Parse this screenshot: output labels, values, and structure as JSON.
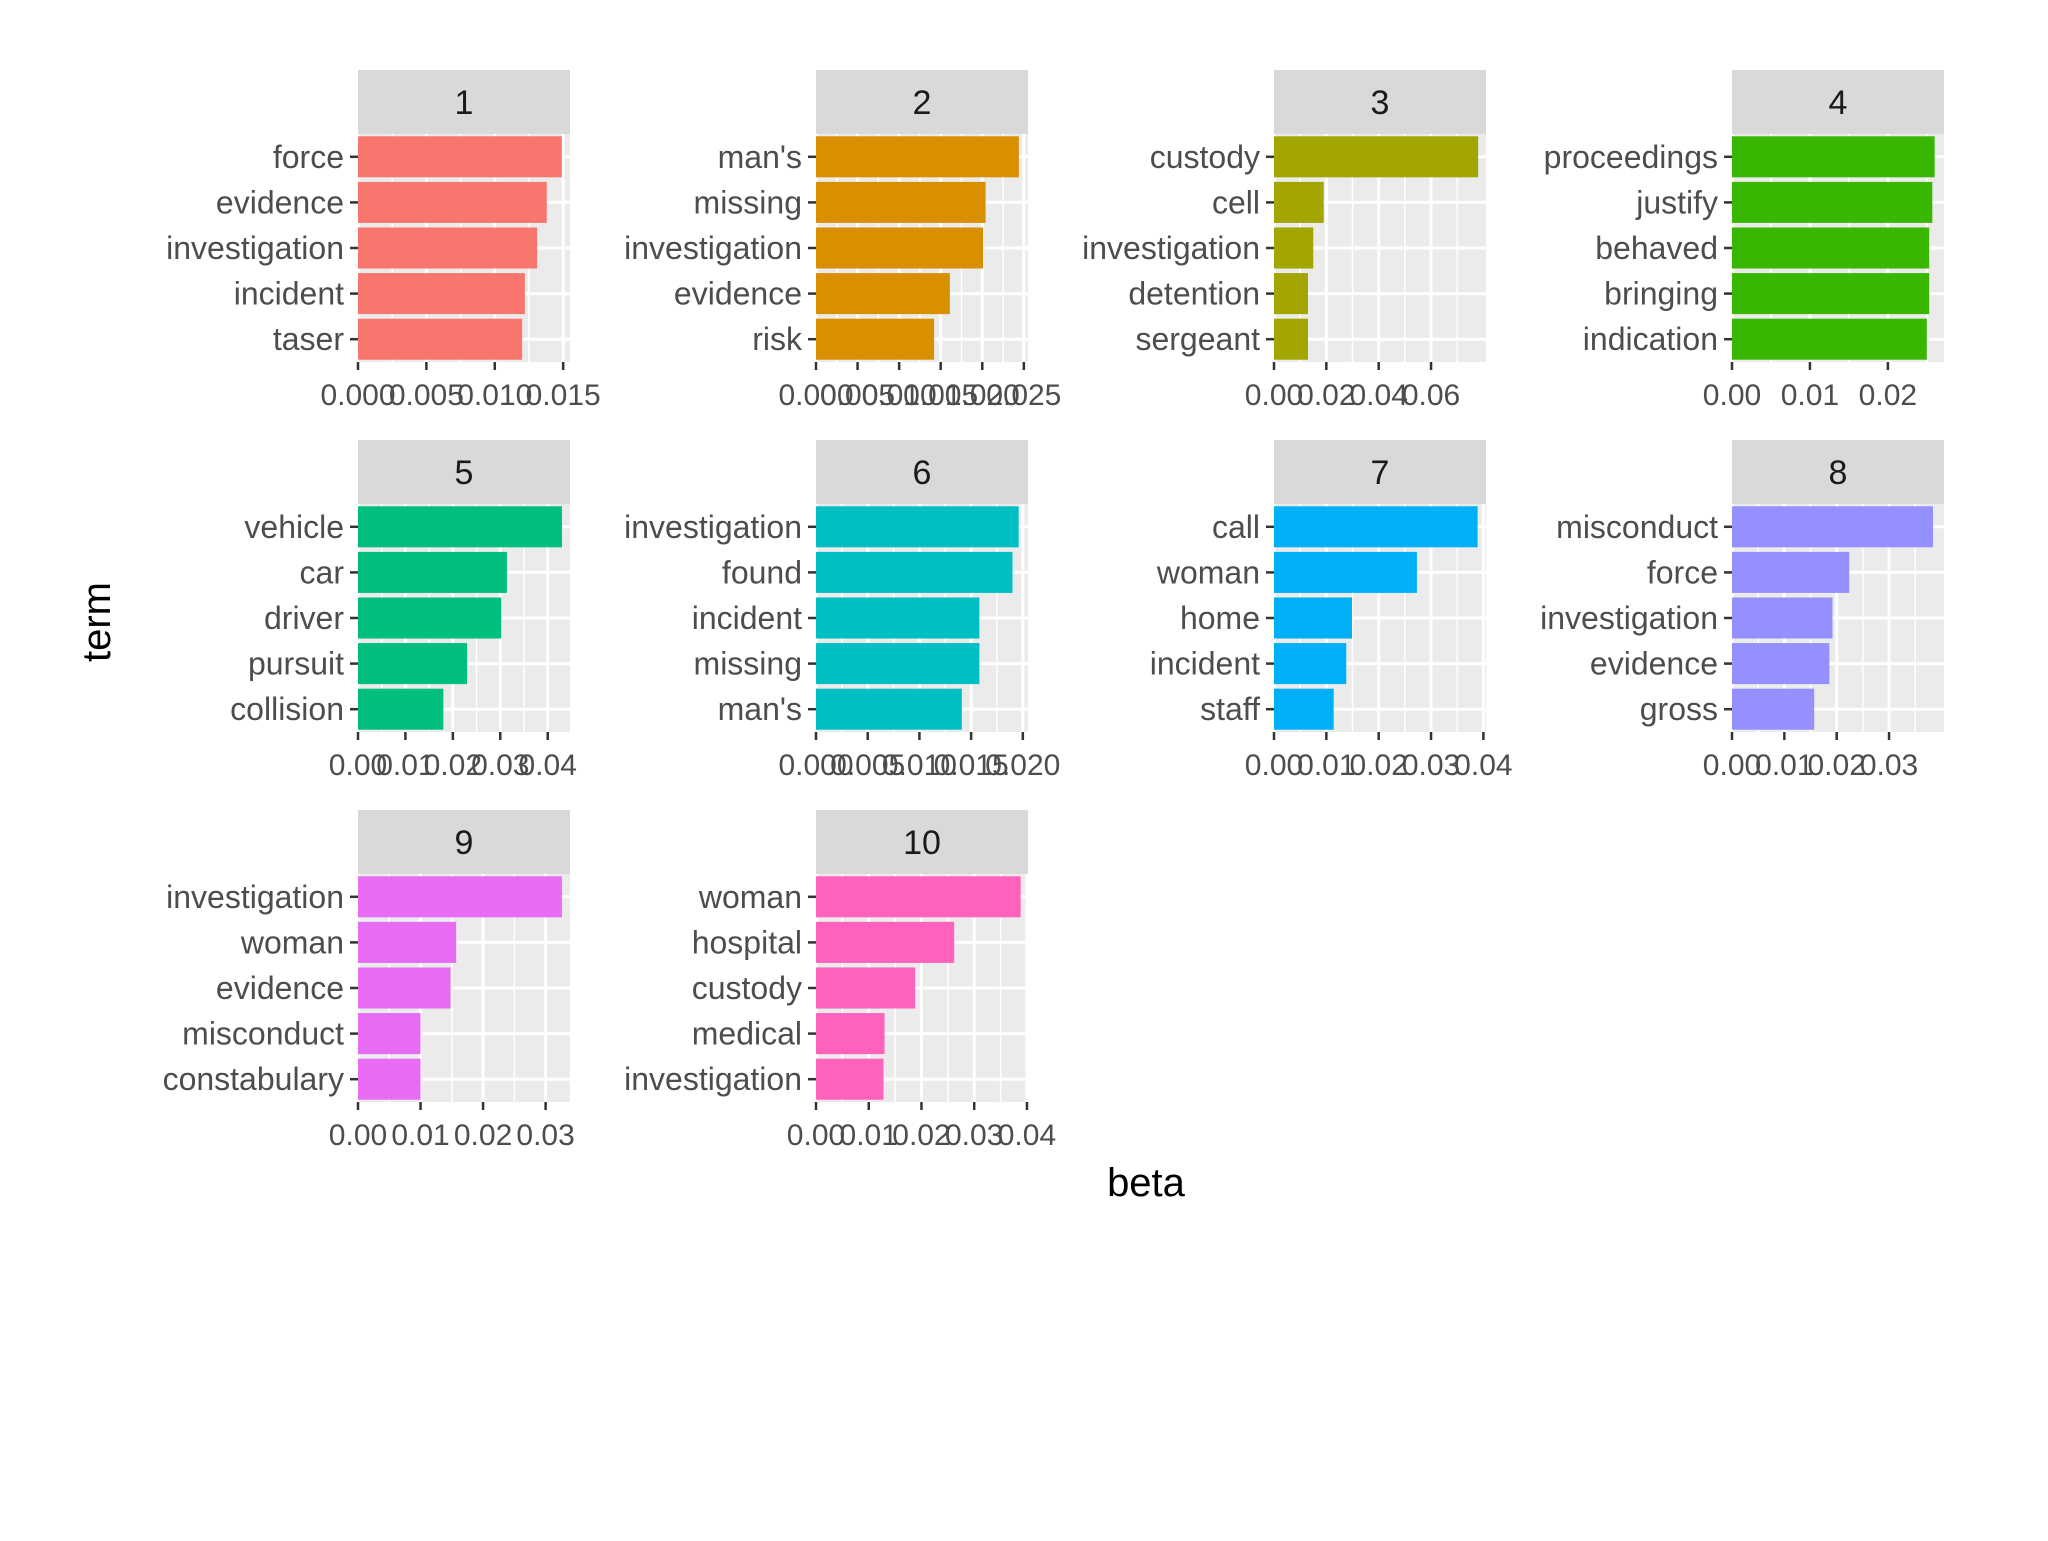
{
  "chart_data": {
    "type": "bar",
    "orientation": "horizontal",
    "facet_type": "wrap",
    "xlabel": "beta",
    "ylabel": "term",
    "panel_background": "#ebebeb",
    "strip_background": "#d9d9d9",
    "panels": [
      {
        "label": "1",
        "color": "#F8766D",
        "terms": [
          "force",
          "evidence",
          "investigation",
          "incident",
          "taser"
        ],
        "values": [
          0.0149,
          0.0138,
          0.0131,
          0.0122,
          0.012
        ],
        "xlim": [
          0,
          0.0155
        ],
        "ticks": [
          0,
          0.005,
          0.01,
          0.015
        ],
        "tick_labels": [
          "0.000",
          "0.005",
          "0.010",
          "0.015"
        ]
      },
      {
        "label": "2",
        "color": "#D89000",
        "terms": [
          "man's",
          "missing",
          "investigation",
          "evidence",
          "risk"
        ],
        "values": [
          0.0244,
          0.0204,
          0.0201,
          0.0161,
          0.0142
        ],
        "xlim": [
          0,
          0.0255
        ],
        "ticks": [
          0,
          0.005,
          0.01,
          0.015,
          0.02,
          0.025
        ],
        "tick_labels": [
          "0.000",
          "0.005",
          "0.010",
          "0.015",
          "0.020",
          "0.025"
        ]
      },
      {
        "label": "3",
        "color": "#A3A500",
        "terms": [
          "custody",
          "cell",
          "investigation",
          "detention",
          "sergeant"
        ],
        "values": [
          0.078,
          0.019,
          0.015,
          0.013,
          0.013
        ],
        "xlim": [
          0,
          0.081
        ],
        "ticks": [
          0,
          0.02,
          0.04,
          0.06
        ],
        "tick_labels": [
          "0.00",
          "0.02",
          "0.04",
          "0.06"
        ]
      },
      {
        "label": "4",
        "color": "#39B600",
        "terms": [
          "proceedings",
          "justify",
          "behaved",
          "bringing",
          "indication"
        ],
        "values": [
          0.026,
          0.0257,
          0.0253,
          0.0253,
          0.025
        ],
        "xlim": [
          0,
          0.0272
        ],
        "ticks": [
          0,
          0.01,
          0.02
        ],
        "tick_labels": [
          "0.00",
          "0.01",
          "0.02"
        ]
      },
      {
        "label": "5",
        "color": "#00BF7D",
        "terms": [
          "vehicle",
          "car",
          "driver",
          "pursuit",
          "collision"
        ],
        "values": [
          0.043,
          0.0314,
          0.0302,
          0.023,
          0.018
        ],
        "xlim": [
          0,
          0.0447
        ],
        "ticks": [
          0,
          0.01,
          0.02,
          0.03,
          0.04
        ],
        "tick_labels": [
          "0.00",
          "0.01",
          "0.02",
          "0.03",
          "0.04"
        ]
      },
      {
        "label": "6",
        "color": "#00BFC4",
        "terms": [
          "investigation",
          "found",
          "incident",
          "missing",
          "man's"
        ],
        "values": [
          0.0196,
          0.019,
          0.0158,
          0.0158,
          0.0141
        ],
        "xlim": [
          0,
          0.0205
        ],
        "ticks": [
          0,
          0.005,
          0.01,
          0.015,
          0.02
        ],
        "tick_labels": [
          "0.000",
          "0.005",
          "0.010",
          "0.015",
          "0.020"
        ]
      },
      {
        "label": "7",
        "color": "#00B0F6",
        "terms": [
          "call",
          "woman",
          "home",
          "incident",
          "staff"
        ],
        "values": [
          0.0389,
          0.0273,
          0.0149,
          0.0138,
          0.0114
        ],
        "xlim": [
          0,
          0.0405
        ],
        "ticks": [
          0,
          0.01,
          0.02,
          0.03,
          0.04
        ],
        "tick_labels": [
          "0.00",
          "0.01",
          "0.02",
          "0.03",
          "0.04"
        ]
      },
      {
        "label": "8",
        "color": "#9590FF",
        "terms": [
          "misconduct",
          "force",
          "investigation",
          "evidence",
          "gross"
        ],
        "values": [
          0.0384,
          0.0224,
          0.0192,
          0.0186,
          0.0157
        ],
        "xlim": [
          0,
          0.0405
        ],
        "ticks": [
          0,
          0.01,
          0.02,
          0.03
        ],
        "tick_labels": [
          "0.00",
          "0.01",
          "0.02",
          "0.03"
        ]
      },
      {
        "label": "9",
        "color": "#E76BF3",
        "terms": [
          "investigation",
          "woman",
          "evidence",
          "misconduct",
          "constabulary"
        ],
        "values": [
          0.0326,
          0.0157,
          0.0148,
          0.01,
          0.01
        ],
        "xlim": [
          0,
          0.0339
        ],
        "ticks": [
          0,
          0.01,
          0.02,
          0.03
        ],
        "tick_labels": [
          "0.00",
          "0.01",
          "0.02",
          "0.03"
        ]
      },
      {
        "label": "10",
        "color": "#FF62BC",
        "terms": [
          "woman",
          "hospital",
          "custody",
          "medical",
          "investigation"
        ],
        "values": [
          0.0388,
          0.0262,
          0.0188,
          0.013,
          0.0128
        ],
        "xlim": [
          0,
          0.0402
        ],
        "ticks": [
          0,
          0.01,
          0.02,
          0.03,
          0.04
        ],
        "tick_labels": [
          "0.00",
          "0.01",
          "0.02",
          "0.03",
          "0.04"
        ]
      }
    ]
  }
}
